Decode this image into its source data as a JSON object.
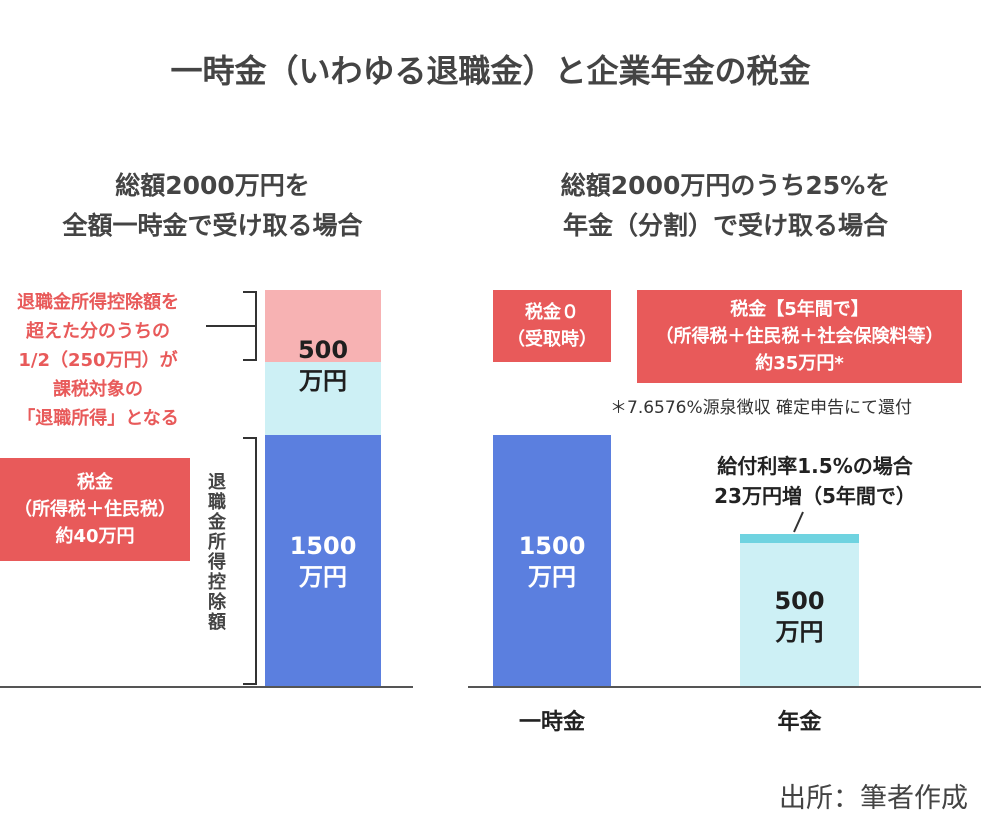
{
  "title": "一時金（いわゆる退職金）と企業年金の税金",
  "left_panel": {
    "subtitle_lines": [
      "総額2000万円を",
      "全額一時金で受け取る場合"
    ],
    "annotation_lines": [
      "退職金所得控除額を",
      "超えた分のうちの",
      "1/2（250万円）が",
      "課税対象の",
      "「退職所得」となる"
    ],
    "tax_box_lines": [
      "税金",
      "（所得税＋住民税）",
      "約40万円"
    ],
    "deduction_label": "退職金所得控除額"
  },
  "right_panel": {
    "subtitle_lines": [
      "総額2000万円のうち25%を",
      "年金（分割）で受け取る場合"
    ],
    "tax_zero_lines": [
      "税金０",
      "（受取時）"
    ],
    "tax_box_lines": [
      "税金【5年間で】",
      "（所得税＋住民税＋社会保険料等）",
      "約35万円*"
    ],
    "footnote": "＊7.6576%源泉徴収 確定申告にて還付",
    "increase_lines": [
      "給付利率1.5%の場合",
      "23万円増（5年間で）"
    ]
  },
  "source": "出所：筆者作成",
  "colors": {
    "title": "#444444",
    "red": "#e85a5a",
    "pink": "#f7b2b3",
    "light_cyan": "#cdf0f5",
    "blue": "#5b7fdf",
    "teal": "#6fd3e0",
    "axis": "#555555"
  },
  "chart_data": {
    "type": "bar",
    "stacked": true,
    "unit": "万円",
    "categories": [
      "一時金",
      "年金"
    ],
    "series": [
      {
        "values": [
          1500,
          1500
        ]
      },
      {
        "values": [
          250,
          0
        ]
      },
      {
        "values": [
          250,
          0
        ]
      },
      {
        "values": [
          0,
          500
        ]
      },
      {
        "values": [
          0,
          23
        ]
      }
    ],
    "ylim": [
      0,
      2000
    ],
    "data_labels": [
      {
        "category": "一時金",
        "lines": [
          "1500",
          "万円"
        ]
      },
      {
        "category": "一時金",
        "lines": [
          "500",
          "万円"
        ]
      },
      {
        "category": "年金",
        "lines": [
          "1500",
          "万円"
        ]
      },
      {
        "category": "年金",
        "lines": [
          "500",
          "万円"
        ]
      }
    ]
  }
}
